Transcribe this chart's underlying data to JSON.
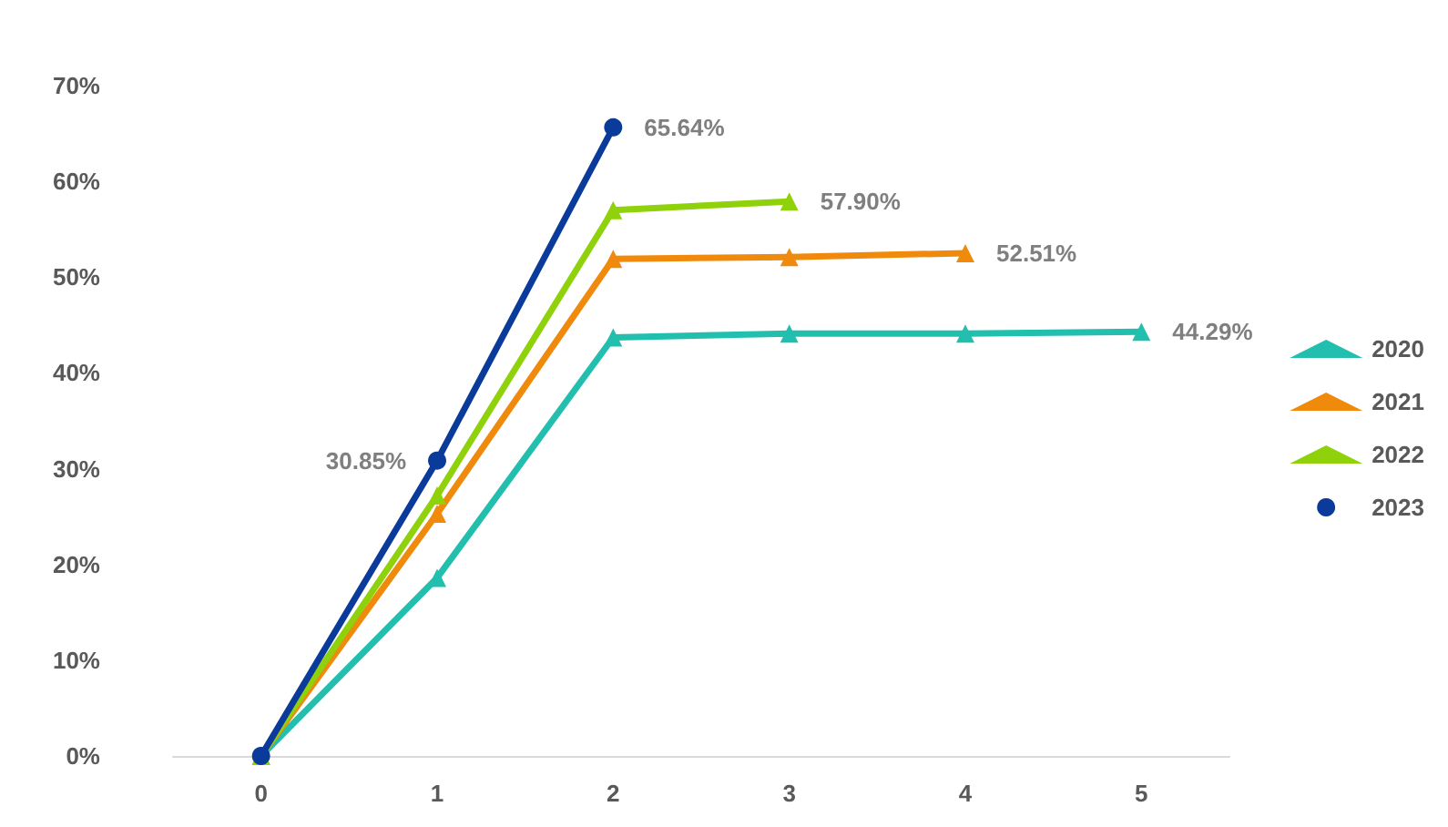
{
  "chart_data": {
    "type": "line",
    "x": [
      0,
      1,
      2,
      3,
      4,
      5
    ],
    "xlim": [
      -0.5,
      5.5
    ],
    "xticks": [
      0,
      1,
      2,
      3,
      4,
      5
    ],
    "ylim": [
      0,
      70
    ],
    "yticks": [
      {
        "value": 0,
        "label": "0%"
      },
      {
        "value": 10,
        "label": "10%"
      },
      {
        "value": 20,
        "label": "20%"
      },
      {
        "value": 30,
        "label": "30%"
      },
      {
        "value": 40,
        "label": "40%"
      },
      {
        "value": 50,
        "label": "50%"
      },
      {
        "value": 60,
        "label": "60%"
      },
      {
        "value": 70,
        "label": "70%"
      }
    ],
    "grid": false,
    "legend": "right",
    "line_style": "solid",
    "series": [
      {
        "name": "2020",
        "color": "#22bfae",
        "marker": "triangle",
        "values": [
          0,
          18.6,
          43.7,
          44.1,
          44.1,
          44.29
        ],
        "value_labels": [
          null,
          null,
          null,
          null,
          null,
          "44.29%"
        ]
      },
      {
        "name": "2021",
        "color": "#f08a0c",
        "marker": "triangle",
        "values": [
          0,
          25.3,
          51.9,
          52.1,
          52.51,
          null
        ],
        "value_labels": [
          null,
          null,
          null,
          null,
          "52.51%",
          null
        ]
      },
      {
        "name": "2022",
        "color": "#8fd10a",
        "marker": "triangle",
        "values": [
          0,
          27.2,
          57.0,
          57.9,
          null,
          null
        ],
        "value_labels": [
          null,
          null,
          null,
          "57.90%",
          null,
          null
        ]
      },
      {
        "name": "2023",
        "color": "#0a3a9a",
        "marker": "circle",
        "values": [
          0,
          30.85,
          65.64,
          null,
          null,
          null
        ],
        "value_labels": [
          null,
          "30.85%",
          "65.64%",
          null,
          null,
          null
        ]
      }
    ]
  }
}
